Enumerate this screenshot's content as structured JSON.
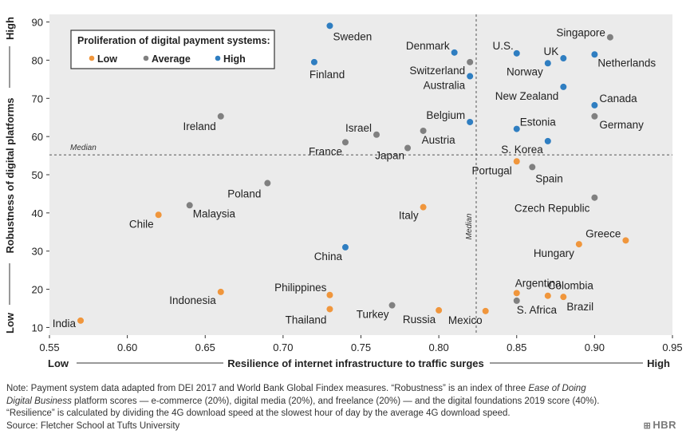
{
  "chart_data": {
    "type": "scatter",
    "title": "",
    "xlabel": "Resilience of internet infrastructure to traffic surges",
    "ylabel": "Robustness of digital platforms",
    "x_low_label": "Low",
    "x_high_label": "High",
    "y_low_label": "Low",
    "y_high_label": "High",
    "xlim": [
      0.55,
      0.95
    ],
    "ylim": [
      8,
      92
    ],
    "x_ticks": [
      "0.55",
      "0.60",
      "0.65",
      "0.70",
      "0.75",
      "0.80",
      "0.85",
      "0.90",
      "0.95"
    ],
    "y_ticks": [
      "10",
      "20",
      "30",
      "40",
      "50",
      "60",
      "70",
      "80",
      "90"
    ],
    "grid": "none",
    "median_x": 0.824,
    "median_y": 55.2,
    "median_label": "Median",
    "legend": {
      "title": "Proliferation of digital payment systems:",
      "placement": "top-left",
      "items": [
        {
          "name": "Low",
          "color": "#f0963c"
        },
        {
          "name": "Average",
          "color": "#808080"
        },
        {
          "name": "High",
          "color": "#2f7ec1"
        }
      ]
    },
    "points": [
      {
        "name": "Sweden",
        "x": 0.73,
        "y": 89,
        "group": "High"
      },
      {
        "name": "Denmark",
        "x": 0.81,
        "y": 82,
        "group": "High"
      },
      {
        "name": "Finland",
        "x": 0.72,
        "y": 79.5,
        "group": "High"
      },
      {
        "name": "Switzerland",
        "x": 0.82,
        "y": 79.5,
        "group": "Average"
      },
      {
        "name": "Australia",
        "x": 0.82,
        "y": 75.8,
        "group": "High"
      },
      {
        "name": "U.S.",
        "x": 0.85,
        "y": 81.8,
        "group": "High"
      },
      {
        "name": "UK",
        "x": 0.88,
        "y": 80.5,
        "group": "High"
      },
      {
        "name": "Norway",
        "x": 0.87,
        "y": 79.2,
        "group": "High"
      },
      {
        "name": "Singapore",
        "x": 0.91,
        "y": 86,
        "group": "Average"
      },
      {
        "name": "Netherlands",
        "x": 0.9,
        "y": 81.5,
        "group": "High"
      },
      {
        "name": "New Zealand",
        "x": 0.88,
        "y": 73,
        "group": "High"
      },
      {
        "name": "Canada",
        "x": 0.9,
        "y": 68.2,
        "group": "High"
      },
      {
        "name": "Germany",
        "x": 0.9,
        "y": 65.3,
        "group": "Average"
      },
      {
        "name": "Ireland",
        "x": 0.66,
        "y": 65.3,
        "group": "Average"
      },
      {
        "name": "Belgium",
        "x": 0.82,
        "y": 63.8,
        "group": "High"
      },
      {
        "name": "Estonia",
        "x": 0.85,
        "y": 62,
        "group": "High"
      },
      {
        "name": "Israel",
        "x": 0.76,
        "y": 60.5,
        "group": "Average"
      },
      {
        "name": "Austria",
        "x": 0.79,
        "y": 61.5,
        "group": "Average"
      },
      {
        "name": "France",
        "x": 0.74,
        "y": 58.5,
        "group": "Average"
      },
      {
        "name": "Japan",
        "x": 0.78,
        "y": 57,
        "group": "Average"
      },
      {
        "name": "S. Korea",
        "x": 0.87,
        "y": 58.8,
        "group": "High"
      },
      {
        "name": "Portugal",
        "x": 0.85,
        "y": 53.5,
        "group": "Low"
      },
      {
        "name": "Spain",
        "x": 0.86,
        "y": 52,
        "group": "Average"
      },
      {
        "name": "Poland",
        "x": 0.69,
        "y": 47.8,
        "group": "Average"
      },
      {
        "name": "Czech Republic",
        "x": 0.9,
        "y": 44,
        "group": "Average"
      },
      {
        "name": "Malaysia",
        "x": 0.64,
        "y": 42,
        "group": "Average"
      },
      {
        "name": "Chile",
        "x": 0.62,
        "y": 39.5,
        "group": "Low"
      },
      {
        "name": "Italy",
        "x": 0.79,
        "y": 41.5,
        "group": "Low"
      },
      {
        "name": "Greece",
        "x": 0.92,
        "y": 32.8,
        "group": "Low"
      },
      {
        "name": "Hungary",
        "x": 0.89,
        "y": 31.8,
        "group": "Low"
      },
      {
        "name": "China",
        "x": 0.74,
        "y": 31,
        "group": "High"
      },
      {
        "name": "Indonesia",
        "x": 0.66,
        "y": 19.3,
        "group": "Low"
      },
      {
        "name": "Philippines",
        "x": 0.73,
        "y": 18.5,
        "group": "Low"
      },
      {
        "name": "Argentina",
        "x": 0.85,
        "y": 19,
        "group": "Low"
      },
      {
        "name": "Colombia",
        "x": 0.87,
        "y": 18.3,
        "group": "Low"
      },
      {
        "name": "Brazil",
        "x": 0.88,
        "y": 18,
        "group": "Low"
      },
      {
        "name": "S. Africa",
        "x": 0.85,
        "y": 17,
        "group": "Average"
      },
      {
        "name": "Turkey",
        "x": 0.77,
        "y": 15.8,
        "group": "Average"
      },
      {
        "name": "Thailand",
        "x": 0.73,
        "y": 14.8,
        "group": "Low"
      },
      {
        "name": "Russia",
        "x": 0.8,
        "y": 14.5,
        "group": "Low"
      },
      {
        "name": "Mexico",
        "x": 0.83,
        "y": 14.3,
        "group": "Low"
      },
      {
        "name": "India",
        "x": 0.57,
        "y": 11.8,
        "group": "Low"
      }
    ]
  },
  "note": {
    "line1": "Note: Payment system data adapted from DEI 2017 and World Bank Global Findex measures. “Robustness” is an index of three ",
    "line1_italic": "Ease of Doing",
    "line2_italic": "Digital Business",
    "line2": " platform scores — e-commerce (20%), digital media (20%), and freelance (20%) — and the digital foundations 2019 score (40%).",
    "line3": "“Resilience” is calculated by dividing the 4G download speed at the slowest hour of day by the average 4G download speed.",
    "source": "Source: Fletcher School at Tufts University"
  },
  "brand": {
    "logo_icon": "hbr-logo-icon",
    "text": "HBR"
  }
}
